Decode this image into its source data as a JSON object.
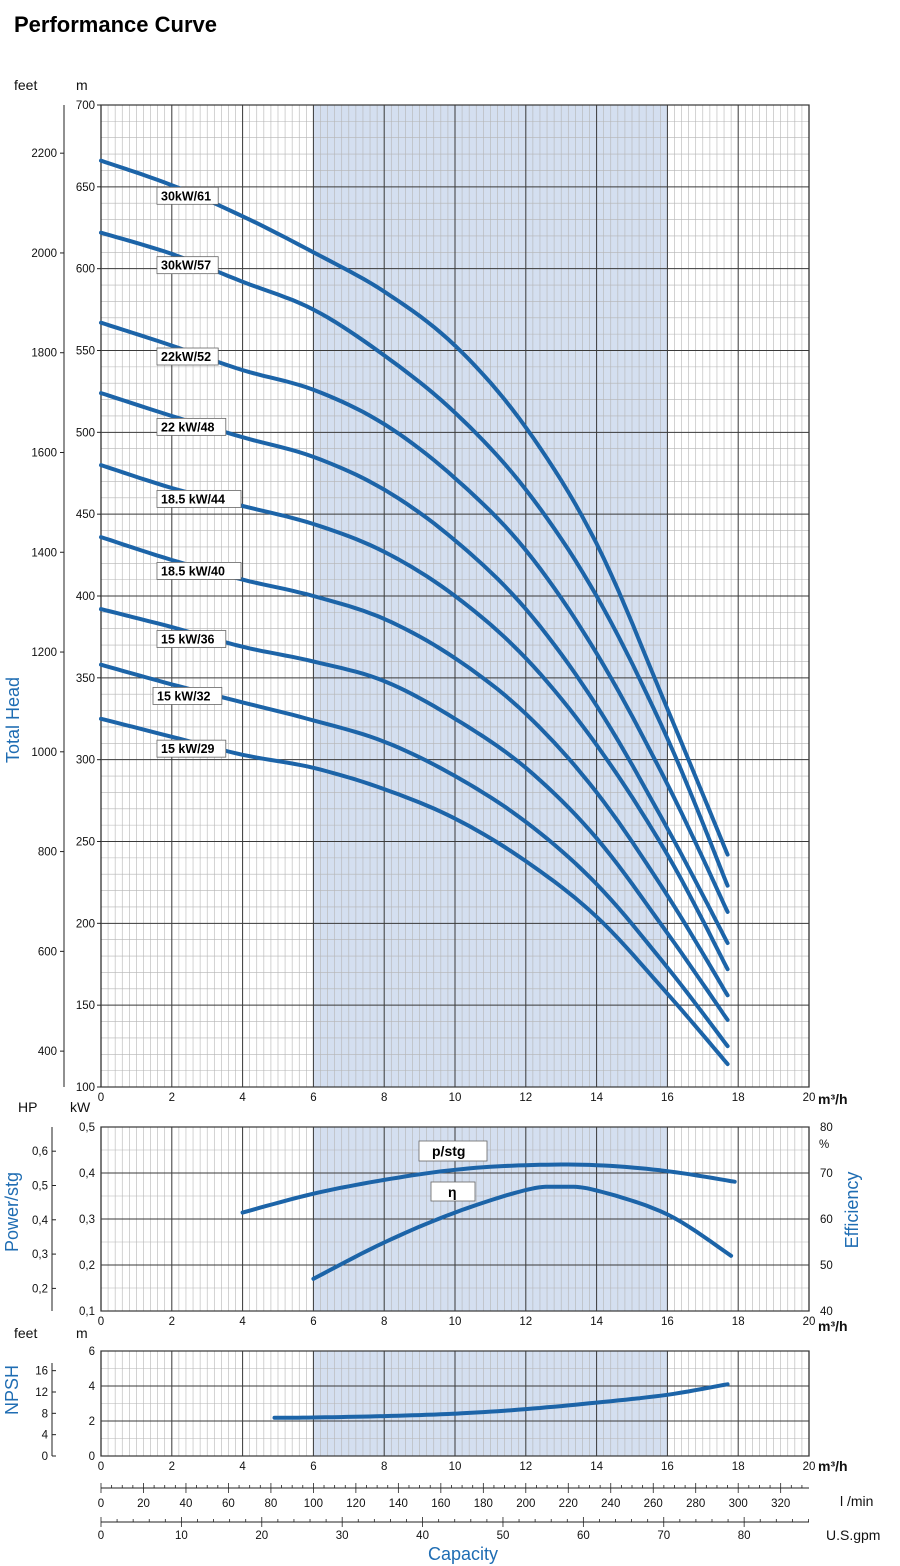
{
  "title": "Performance Curve",
  "colors": {
    "curve": "#1c64a8",
    "shade": "#d4dff0",
    "grid_major": "#3a3a3a",
    "grid_minor": "#b5b5b5",
    "axis_title": "#1f6db3"
  },
  "units": {
    "feet": "feet",
    "m": "m",
    "hp": "HP",
    "kw": "kW",
    "percent": "%",
    "m3h": "m³/h",
    "lmin": "l /min",
    "usgpm": "U.S.gpm"
  },
  "axis_titles": {
    "head": "Total Head",
    "power": "Power/stg",
    "efficiency": "Efficiency",
    "npsh": "NPSH",
    "capacity": "Capacity"
  },
  "chart_data": [
    {
      "type": "line",
      "name": "head",
      "xlabel": "m³/h",
      "ylabel": "Total Head",
      "xlim": [
        0,
        20
      ],
      "ylim": [
        100,
        700
      ],
      "shaded_x": [
        6,
        16
      ],
      "grid": true,
      "x_ticks": [
        "0",
        "2",
        "4",
        "6",
        "8",
        "10",
        "12",
        "14",
        "16",
        "18",
        "20"
      ],
      "y_ticks": [
        "100",
        "150",
        "200",
        "250",
        "300",
        "350",
        "400",
        "450",
        "500",
        "550",
        "600",
        "650",
        "700"
      ],
      "secondary_y_label": "feet",
      "secondary_y_ticks": [
        "400",
        "600",
        "800",
        "1000",
        "1200",
        "1400",
        "1600",
        "1800",
        "2000",
        "2200"
      ],
      "series": [
        {
          "name": "30kW/61",
          "x": [
            0,
            2,
            4,
            6,
            8,
            10,
            12,
            14,
            16,
            17.7
          ],
          "y": [
            666,
            651,
            632,
            610,
            586,
            553,
            503,
            432,
            331,
            242
          ]
        },
        {
          "name": "30kW/57",
          "x": [
            0,
            2,
            4,
            6,
            8,
            10,
            12,
            14,
            16,
            17.7
          ],
          "y": [
            622,
            609,
            592,
            575,
            547,
            512,
            465,
            400,
            313,
            223
          ]
        },
        {
          "name": "22kW/52",
          "x": [
            0,
            2,
            4,
            6,
            8,
            10,
            12,
            14,
            16,
            17.7
          ],
          "y": [
            567,
            553,
            538,
            526,
            505,
            472,
            428,
            365,
            285,
            207
          ]
        },
        {
          "name": "22 kW/48",
          "x": [
            0,
            2,
            4,
            6,
            8,
            10,
            12,
            14,
            16,
            17.7
          ],
          "y": [
            524,
            510,
            497,
            485,
            465,
            434,
            392,
            333,
            258,
            188
          ]
        },
        {
          "name": "18.5 kW/44",
          "x": [
            0,
            2,
            4,
            6,
            8,
            10,
            12,
            14,
            16,
            17.7
          ],
          "y": [
            480,
            466,
            455,
            444,
            427,
            400,
            362,
            309,
            242,
            172
          ]
        },
        {
          "name": "18.5 kW/40",
          "x": [
            0,
            2,
            4,
            6,
            8,
            10,
            12,
            14,
            16,
            17.7
          ],
          "y": [
            436,
            422,
            410,
            400,
            386,
            362,
            328,
            280,
            217,
            156
          ]
        },
        {
          "name": "15 kW/36",
          "x": [
            0,
            2,
            4,
            6,
            8,
            10,
            12,
            14,
            16,
            17.7
          ],
          "y": [
            392,
            381,
            369,
            360,
            348,
            325,
            295,
            252,
            194,
            141
          ]
        },
        {
          "name": "15 kW/32",
          "x": [
            0,
            2,
            4,
            6,
            8,
            10,
            12,
            14,
            16,
            17.7
          ],
          "y": [
            358,
            346,
            335,
            324,
            311,
            290,
            262,
            224,
            173,
            125
          ]
        },
        {
          "name": "15 kW/29",
          "x": [
            0,
            2,
            4,
            6,
            8,
            10,
            12,
            14,
            16,
            17.7
          ],
          "y": [
            325,
            314,
            303,
            295,
            282,
            264,
            238,
            204,
            157,
            114
          ]
        }
      ]
    },
    {
      "type": "line",
      "name": "power_efficiency",
      "xlabel": "m³/h",
      "ylabel": "Power/stg",
      "xlim": [
        0,
        20
      ],
      "ylim": [
        0.1,
        0.5
      ],
      "shaded_x": [
        6,
        16
      ],
      "grid": true,
      "x_ticks": [
        "0",
        "2",
        "4",
        "6",
        "8",
        "10",
        "12",
        "14",
        "16",
        "18",
        "20"
      ],
      "y_ticks": [
        "0,1",
        "0,2",
        "0,3",
        "0,4",
        "0,5"
      ],
      "hp_ticks": [
        "0,2",
        "0,3",
        "0,4",
        "0,5",
        "0,6"
      ],
      "efficiency_ticks": [
        "40",
        "50",
        "60",
        "70",
        "80"
      ],
      "efficiency_lim": [
        40,
        80
      ],
      "series": [
        {
          "name": "p/stg",
          "axis": "kW",
          "x": [
            4,
            6,
            8,
            10,
            12,
            14,
            16,
            17.9
          ],
          "y": [
            0.314,
            0.355,
            0.385,
            0.407,
            0.417,
            0.417,
            0.404,
            0.381
          ]
        },
        {
          "name": "η",
          "axis": "%",
          "x": [
            6,
            8,
            10,
            12,
            13,
            14,
            16,
            17.8
          ],
          "y": [
            47.0,
            54.9,
            61.4,
            66.3,
            67.0,
            66.2,
            61.0,
            52.0
          ]
        }
      ]
    },
    {
      "type": "line",
      "name": "npsh",
      "xlabel": "m³/h",
      "ylabel": "NPSH",
      "xlim": [
        0,
        20
      ],
      "ylim": [
        0,
        6
      ],
      "shaded_x": [
        6,
        16
      ],
      "grid": true,
      "x_ticks": [
        "0",
        "2",
        "4",
        "6",
        "8",
        "10",
        "12",
        "14",
        "16",
        "18",
        "20"
      ],
      "y_ticks": [
        "0",
        "2",
        "4",
        "6"
      ],
      "feet_ticks": [
        "0",
        "4",
        "8",
        "12",
        "16"
      ],
      "series": [
        {
          "name": "NPSH",
          "x": [
            4.9,
            6,
            8,
            10,
            12,
            14,
            16,
            17.7
          ],
          "y": [
            2.18,
            2.2,
            2.28,
            2.42,
            2.68,
            3.05,
            3.5,
            4.1
          ]
        }
      ]
    }
  ],
  "capacity_scales": {
    "lmin_ticks": [
      "0",
      "20",
      "40",
      "60",
      "80",
      "100",
      "120",
      "140",
      "160",
      "180",
      "200",
      "220",
      "240",
      "260",
      "280",
      "300",
      "320"
    ],
    "usgpm_ticks": [
      "0",
      "10",
      "20",
      "30",
      "40",
      "50",
      "60",
      "70",
      "80"
    ]
  }
}
